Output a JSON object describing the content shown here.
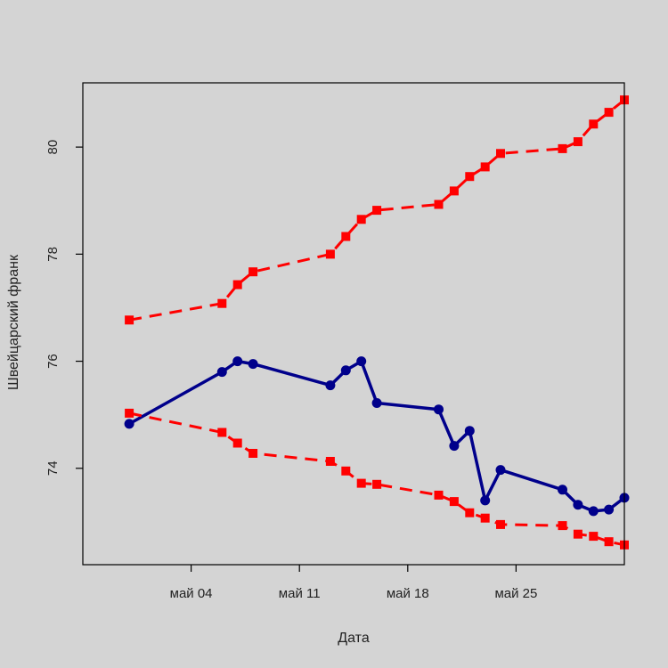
{
  "chart_data": {
    "type": "line",
    "title": "",
    "xlabel": "Дата",
    "ylabel": "Швейцарский франк",
    "x_unit": "date",
    "xlim": [
      "2020-04-27",
      "2020-06-01"
    ],
    "ylim": [
      72.2,
      81.2
    ],
    "x_ticks": [
      {
        "date": "2020-05-04",
        "label": "май 04"
      },
      {
        "date": "2020-05-11",
        "label": "май 11"
      },
      {
        "date": "2020-05-18",
        "label": "май 18"
      },
      {
        "date": "2020-05-25",
        "label": "май 25"
      }
    ],
    "y_ticks": [
      74,
      76,
      78,
      80
    ],
    "grid": false,
    "colors": {
      "main": "#00008b",
      "bounds": "#ff0000",
      "background": "#d4d4d4"
    },
    "series": [
      {
        "style": "solid",
        "x": [
          "2020-04-30",
          "2020-05-06",
          "2020-05-07",
          "2020-05-08",
          "2020-05-13",
          "2020-05-14",
          "2020-05-15",
          "2020-05-16",
          "2020-05-20",
          "2020-05-21",
          "2020-05-22",
          "2020-05-23",
          "2020-05-24",
          "2020-05-28",
          "2020-05-29",
          "2020-05-30",
          "2020-05-31",
          "2020-06-01"
        ],
        "y": [
          74.83,
          75.8,
          76.0,
          75.95,
          75.55,
          75.83,
          76.0,
          75.22,
          75.1,
          74.42,
          74.7,
          73.4,
          73.97,
          73.6,
          73.32,
          73.2,
          73.23,
          73.45
        ]
      },
      {
        "style": "dashed",
        "x": [
          "2020-04-30",
          "2020-05-06",
          "2020-05-07",
          "2020-05-08",
          "2020-05-13",
          "2020-05-14",
          "2020-05-15",
          "2020-05-16",
          "2020-05-20",
          "2020-05-21",
          "2020-05-22",
          "2020-05-23",
          "2020-05-24",
          "2020-05-28",
          "2020-05-29",
          "2020-05-30",
          "2020-05-31",
          "2020-06-01"
        ],
        "y": [
          76.77,
          77.08,
          77.43,
          77.67,
          78.0,
          78.33,
          78.65,
          78.82,
          78.93,
          79.18,
          79.45,
          79.63,
          79.88,
          79.97,
          80.1,
          80.43,
          80.65,
          80.88
        ]
      },
      {
        "style": "dashed",
        "x": [
          "2020-04-30",
          "2020-05-06",
          "2020-05-07",
          "2020-05-08",
          "2020-05-13",
          "2020-05-14",
          "2020-05-15",
          "2020-05-16",
          "2020-05-20",
          "2020-05-21",
          "2020-05-22",
          "2020-05-23",
          "2020-05-24",
          "2020-05-28",
          "2020-05-29",
          "2020-05-30",
          "2020-05-31",
          "2020-06-01"
        ],
        "y": [
          75.03,
          74.67,
          74.47,
          74.28,
          74.13,
          73.95,
          73.72,
          73.7,
          73.5,
          73.38,
          73.17,
          73.07,
          72.95,
          72.93,
          72.77,
          72.73,
          72.63,
          72.57
        ]
      }
    ]
  }
}
